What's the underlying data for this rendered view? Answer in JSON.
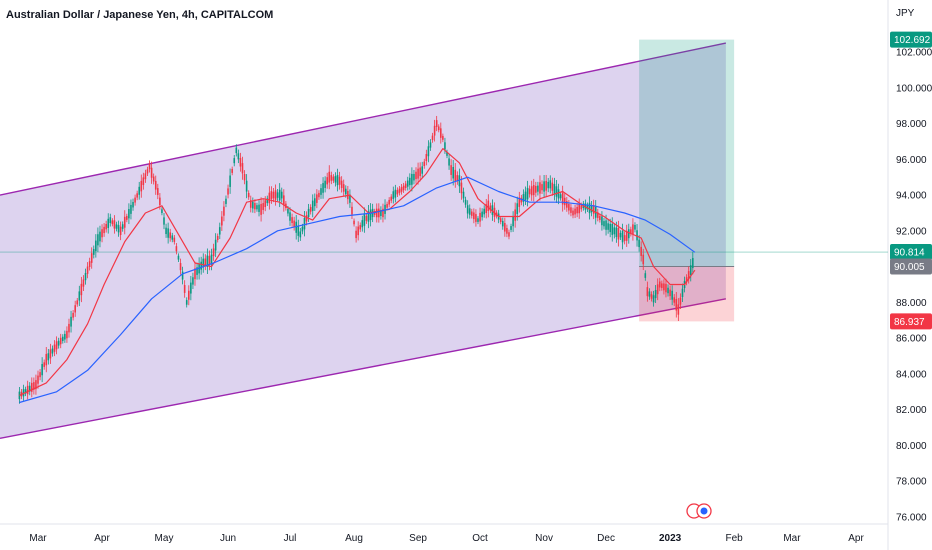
{
  "title": "Australian Dollar / Japanese Yen, 4h, CAPITALCOM",
  "chart_data": {
    "type": "line",
    "title": "Australian Dollar / Japanese Yen, 4h, CAPITALCOM",
    "y_unit": "JPY",
    "y_ticks": [
      "76.000",
      "78.000",
      "80.000",
      "82.000",
      "84.000",
      "86.000",
      "88.000",
      "90.000",
      "92.000",
      "94.000",
      "96.000",
      "98.000",
      "100.000",
      "102.000"
    ],
    "ylim": [
      75.5,
      104.5
    ],
    "x_ticks": [
      "Mar",
      "Apr",
      "May",
      "Jun",
      "Jul",
      "Aug",
      "Sep",
      "Oct",
      "Nov",
      "Dec",
      "2023",
      "Feb",
      "Mar",
      "Apr"
    ],
    "bold_x_tick": "2023",
    "x_months": [
      "2022-03",
      "2022-04",
      "2022-05",
      "2022-06",
      "2022-07",
      "2022-08",
      "2022-09",
      "2022-10",
      "2022-11",
      "2022-12",
      "2023-01",
      "2023-02",
      "2023-03",
      "2023-04"
    ],
    "price_badges": [
      {
        "label": "102.692",
        "value": 102.692,
        "color": "#089981"
      },
      {
        "label": "90.814",
        "value": 90.814,
        "color": "#089981"
      },
      {
        "label": "90.005",
        "value": 90.005,
        "color": "#787b86"
      },
      {
        "label": "86.937",
        "value": 86.937,
        "color": "#f23645"
      }
    ],
    "price_series": {
      "name": "",
      "color": "#089981",
      "points": [
        [
          "2022-02-20",
          82.8
        ],
        [
          "2022-02-28",
          83.4
        ],
        [
          "2022-03-05",
          84.8
        ],
        [
          "2022-03-10",
          85.6
        ],
        [
          "2022-03-15",
          86.2
        ],
        [
          "2022-03-20",
          88.0
        ],
        [
          "2022-03-25",
          89.8
        ],
        [
          "2022-03-30",
          91.5
        ],
        [
          "2022-04-05",
          92.6
        ],
        [
          "2022-04-10",
          92.0
        ],
        [
          "2022-04-15",
          93.2
        ],
        [
          "2022-04-20",
          94.5
        ],
        [
          "2022-04-24",
          95.6
        ],
        [
          "2022-04-28",
          94.2
        ],
        [
          "2022-05-02",
          92.0
        ],
        [
          "2022-05-06",
          91.5
        ],
        [
          "2022-05-10",
          89.5
        ],
        [
          "2022-05-12",
          88.0
        ],
        [
          "2022-05-16",
          89.6
        ],
        [
          "2022-05-20",
          90.2
        ],
        [
          "2022-05-24",
          90.4
        ],
        [
          "2022-05-28",
          92.0
        ],
        [
          "2022-06-01",
          94.2
        ],
        [
          "2022-06-05",
          96.5
        ],
        [
          "2022-06-08",
          95.5
        ],
        [
          "2022-06-12",
          93.5
        ],
        [
          "2022-06-17",
          93.2
        ],
        [
          "2022-06-22",
          94.0
        ],
        [
          "2022-06-27",
          94.0
        ],
        [
          "2022-07-01",
          92.8
        ],
        [
          "2022-07-06",
          91.8
        ],
        [
          "2022-07-10",
          93.0
        ],
        [
          "2022-07-15",
          94.0
        ],
        [
          "2022-07-20",
          95.0
        ],
        [
          "2022-07-25",
          94.8
        ],
        [
          "2022-07-30",
          93.8
        ],
        [
          "2022-08-02",
          91.8
        ],
        [
          "2022-08-06",
          92.6
        ],
        [
          "2022-08-10",
          93.0
        ],
        [
          "2022-08-15",
          93.0
        ],
        [
          "2022-08-20",
          94.0
        ],
        [
          "2022-08-25",
          94.4
        ],
        [
          "2022-08-30",
          95.0
        ],
        [
          "2022-09-03",
          95.4
        ],
        [
          "2022-09-07",
          96.8
        ],
        [
          "2022-09-10",
          98.0
        ],
        [
          "2022-09-13",
          97.2
        ],
        [
          "2022-09-17",
          95.4
        ],
        [
          "2022-09-21",
          94.8
        ],
        [
          "2022-09-25",
          93.2
        ],
        [
          "2022-09-30",
          92.6
        ],
        [
          "2022-10-05",
          93.4
        ],
        [
          "2022-10-10",
          92.8
        ],
        [
          "2022-10-15",
          91.8
        ],
        [
          "2022-10-20",
          93.6
        ],
        [
          "2022-10-25",
          94.2
        ],
        [
          "2022-10-30",
          94.4
        ],
        [
          "2022-11-04",
          94.6
        ],
        [
          "2022-11-10",
          93.8
        ],
        [
          "2022-11-15",
          93.0
        ],
        [
          "2022-11-20",
          93.4
        ],
        [
          "2022-11-25",
          93.2
        ],
        [
          "2022-11-30",
          92.4
        ],
        [
          "2022-12-05",
          92.0
        ],
        [
          "2022-12-10",
          91.6
        ],
        [
          "2022-12-15",
          92.2
        ],
        [
          "2022-12-19",
          90.4
        ],
        [
          "2022-12-21",
          88.6
        ],
        [
          "2022-12-24",
          88.2
        ],
        [
          "2022-12-27",
          89.0
        ],
        [
          "2022-12-30",
          88.8
        ],
        [
          "2023-01-02",
          88.4
        ],
        [
          "2023-01-05",
          87.6
        ],
        [
          "2023-01-08",
          89.0
        ],
        [
          "2023-01-11",
          89.8
        ],
        [
          "2023-01-13",
          90.6
        ]
      ]
    },
    "ma_fast": {
      "name": "",
      "color": "#f23645",
      "points": [
        [
          "2022-02-20",
          82.8
        ],
        [
          "2022-03-05",
          83.5
        ],
        [
          "2022-03-15",
          84.8
        ],
        [
          "2022-03-25",
          86.8
        ],
        [
          "2022-04-02",
          89.0
        ],
        [
          "2022-04-12",
          91.4
        ],
        [
          "2022-04-22",
          93.0
        ],
        [
          "2022-04-30",
          93.4
        ],
        [
          "2022-05-08",
          91.8
        ],
        [
          "2022-05-16",
          90.2
        ],
        [
          "2022-05-24",
          90.0
        ],
        [
          "2022-06-02",
          91.6
        ],
        [
          "2022-06-10",
          93.6
        ],
        [
          "2022-06-18",
          93.8
        ],
        [
          "2022-06-26",
          93.6
        ],
        [
          "2022-07-04",
          93.0
        ],
        [
          "2022-07-12",
          92.6
        ],
        [
          "2022-07-20",
          93.8
        ],
        [
          "2022-07-30",
          94.0
        ],
        [
          "2022-08-08",
          93.0
        ],
        [
          "2022-08-18",
          93.2
        ],
        [
          "2022-08-28",
          94.2
        ],
        [
          "2022-09-05",
          95.2
        ],
        [
          "2022-09-13",
          96.6
        ],
        [
          "2022-09-21",
          95.8
        ],
        [
          "2022-09-30",
          93.8
        ],
        [
          "2022-10-10",
          92.8
        ],
        [
          "2022-10-20",
          92.8
        ],
        [
          "2022-10-30",
          93.8
        ],
        [
          "2022-11-10",
          94.2
        ],
        [
          "2022-11-20",
          93.4
        ],
        [
          "2022-11-30",
          92.8
        ],
        [
          "2022-12-10",
          92.0
        ],
        [
          "2022-12-18",
          91.6
        ],
        [
          "2022-12-24",
          90.0
        ],
        [
          "2023-01-01",
          89.0
        ],
        [
          "2023-01-08",
          89.0
        ],
        [
          "2023-01-13",
          89.8
        ]
      ]
    },
    "ma_slow": {
      "name": "",
      "color": "#2962ff",
      "points": [
        [
          "2022-02-20",
          82.4
        ],
        [
          "2022-03-10",
          83.0
        ],
        [
          "2022-03-25",
          84.2
        ],
        [
          "2022-04-10",
          86.2
        ],
        [
          "2022-04-25",
          88.2
        ],
        [
          "2022-05-10",
          89.6
        ],
        [
          "2022-05-25",
          90.2
        ],
        [
          "2022-06-10",
          91.0
        ],
        [
          "2022-06-25",
          92.0
        ],
        [
          "2022-07-10",
          92.4
        ],
        [
          "2022-07-25",
          92.8
        ],
        [
          "2022-08-10",
          93.0
        ],
        [
          "2022-08-25",
          93.4
        ],
        [
          "2022-09-10",
          94.4
        ],
        [
          "2022-09-25",
          95.0
        ],
        [
          "2022-10-10",
          94.2
        ],
        [
          "2022-10-25",
          93.6
        ],
        [
          "2022-11-10",
          93.6
        ],
        [
          "2022-11-25",
          93.4
        ],
        [
          "2022-12-10",
          93.0
        ],
        [
          "2022-12-20",
          92.6
        ],
        [
          "2023-01-01",
          91.8
        ],
        [
          "2023-01-13",
          90.8
        ]
      ]
    },
    "channel": {
      "color": "#9c27b0",
      "upper": [
        [
          "2022-02-20",
          94.0
        ],
        [
          "2023-01-28",
          102.5
        ]
      ],
      "lower": [
        [
          "2022-02-20",
          80.4
        ],
        [
          "2023-01-28",
          88.2
        ]
      ]
    },
    "position": {
      "type": "long",
      "start": "2022-12-17",
      "end": "2023-02-01",
      "entry": 90.005,
      "target": 102.692,
      "stop": 86.937,
      "profit_color": "#089981",
      "loss_color": "#f23645"
    },
    "current_price": 90.814,
    "grid": false
  }
}
